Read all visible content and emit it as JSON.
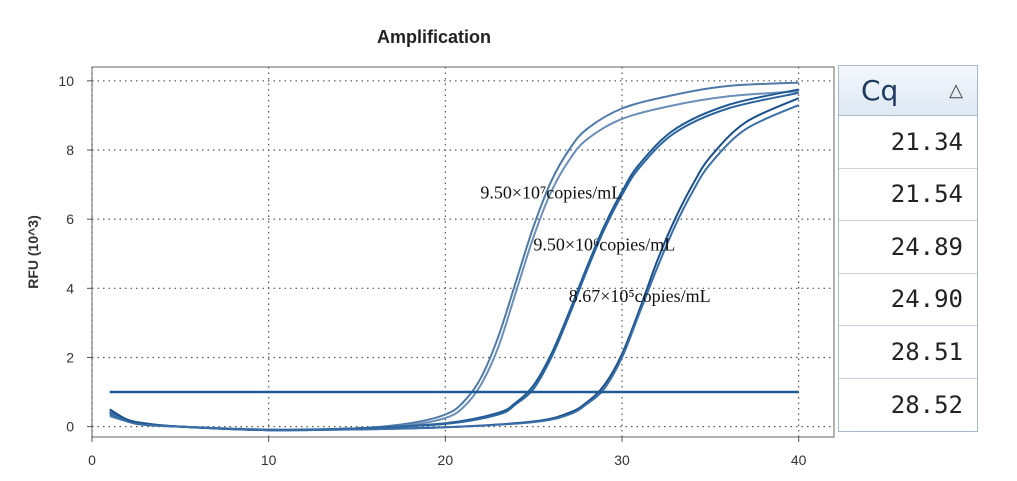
{
  "chart_data": {
    "type": "line",
    "title": "Amplification",
    "xlabel": "",
    "ylabel": "RFU (10^3)",
    "xlim": [
      0,
      42
    ],
    "ylim": [
      -0.3,
      10.4
    ],
    "xticks": [
      0,
      10,
      20,
      30,
      40
    ],
    "yticks": [
      0,
      2,
      4,
      6,
      8,
      10
    ],
    "grid": true,
    "threshold": 1.0,
    "series": [
      {
        "x": [
          1,
          2,
          3,
          5,
          10,
          15,
          18,
          20,
          21,
          22,
          23,
          24,
          25,
          26,
          27,
          28,
          30,
          33,
          36,
          40
        ],
        "y": [
          0.45,
          0.2,
          0.1,
          0.0,
          -0.1,
          -0.05,
          0.1,
          0.35,
          0.7,
          1.4,
          2.6,
          4.2,
          5.8,
          7.1,
          8.0,
          8.6,
          9.2,
          9.6,
          9.85,
          9.95
        ]
      },
      {
        "x": [
          1,
          2,
          3,
          5,
          10,
          15,
          18,
          20,
          21,
          22,
          23,
          24,
          25,
          26,
          27,
          28,
          30,
          33,
          36,
          40
        ],
        "y": [
          0.3,
          0.15,
          0.05,
          0.0,
          -0.08,
          -0.05,
          0.05,
          0.25,
          0.55,
          1.2,
          2.3,
          3.9,
          5.5,
          6.8,
          7.7,
          8.3,
          8.9,
          9.3,
          9.55,
          9.7
        ]
      },
      {
        "x": [
          1,
          2,
          3,
          5,
          10,
          15,
          20,
          23,
          24,
          25,
          26,
          27,
          28,
          29,
          30,
          31,
          33,
          36,
          40
        ],
        "y": [
          0.4,
          0.18,
          0.08,
          0.0,
          -0.1,
          -0.05,
          0.1,
          0.4,
          0.7,
          1.2,
          2.1,
          3.3,
          4.6,
          5.8,
          6.8,
          7.6,
          8.6,
          9.3,
          9.75
        ]
      },
      {
        "x": [
          1,
          2,
          3,
          5,
          10,
          15,
          20,
          23,
          24,
          25,
          26,
          27,
          28,
          29,
          30,
          31,
          33,
          36,
          40
        ],
        "y": [
          0.35,
          0.15,
          0.05,
          0.0,
          -0.1,
          -0.05,
          0.08,
          0.35,
          0.65,
          1.1,
          2.0,
          3.2,
          4.5,
          5.7,
          6.7,
          7.5,
          8.5,
          9.2,
          9.65
        ]
      },
      {
        "x": [
          1,
          2,
          3,
          5,
          10,
          15,
          20,
          25,
          27,
          28,
          29,
          30,
          31,
          32,
          33,
          34,
          35,
          37,
          40
        ],
        "y": [
          0.5,
          0.2,
          0.08,
          0.0,
          -0.1,
          -0.08,
          -0.02,
          0.15,
          0.4,
          0.7,
          1.2,
          2.1,
          3.4,
          4.8,
          6.0,
          7.0,
          7.8,
          8.8,
          9.5
        ]
      },
      {
        "x": [
          1,
          2,
          3,
          5,
          10,
          15,
          20,
          25,
          27,
          28,
          29,
          30,
          31,
          32,
          33,
          34,
          35,
          37,
          40
        ],
        "y": [
          0.4,
          0.15,
          0.05,
          0.0,
          -0.1,
          -0.08,
          -0.02,
          0.13,
          0.35,
          0.65,
          1.1,
          2.0,
          3.3,
          4.6,
          5.8,
          6.8,
          7.6,
          8.6,
          9.3
        ]
      }
    ],
    "annotations": [
      {
        "text": "9.50×10⁷copies/mL",
        "x": 26,
        "y": 6.6
      },
      {
        "text": "9.50×10⁶copies/mL",
        "x": 29,
        "y": 5.1
      },
      {
        "text": "8.67×10⁵copies/mL",
        "x": 31,
        "y": 3.6
      }
    ]
  },
  "cq_table": {
    "header": "Cq",
    "sort_icon": "sort-triangle-icon",
    "values": [
      "21.34",
      "21.54",
      "24.89",
      "24.90",
      "28.51",
      "28.52"
    ]
  }
}
